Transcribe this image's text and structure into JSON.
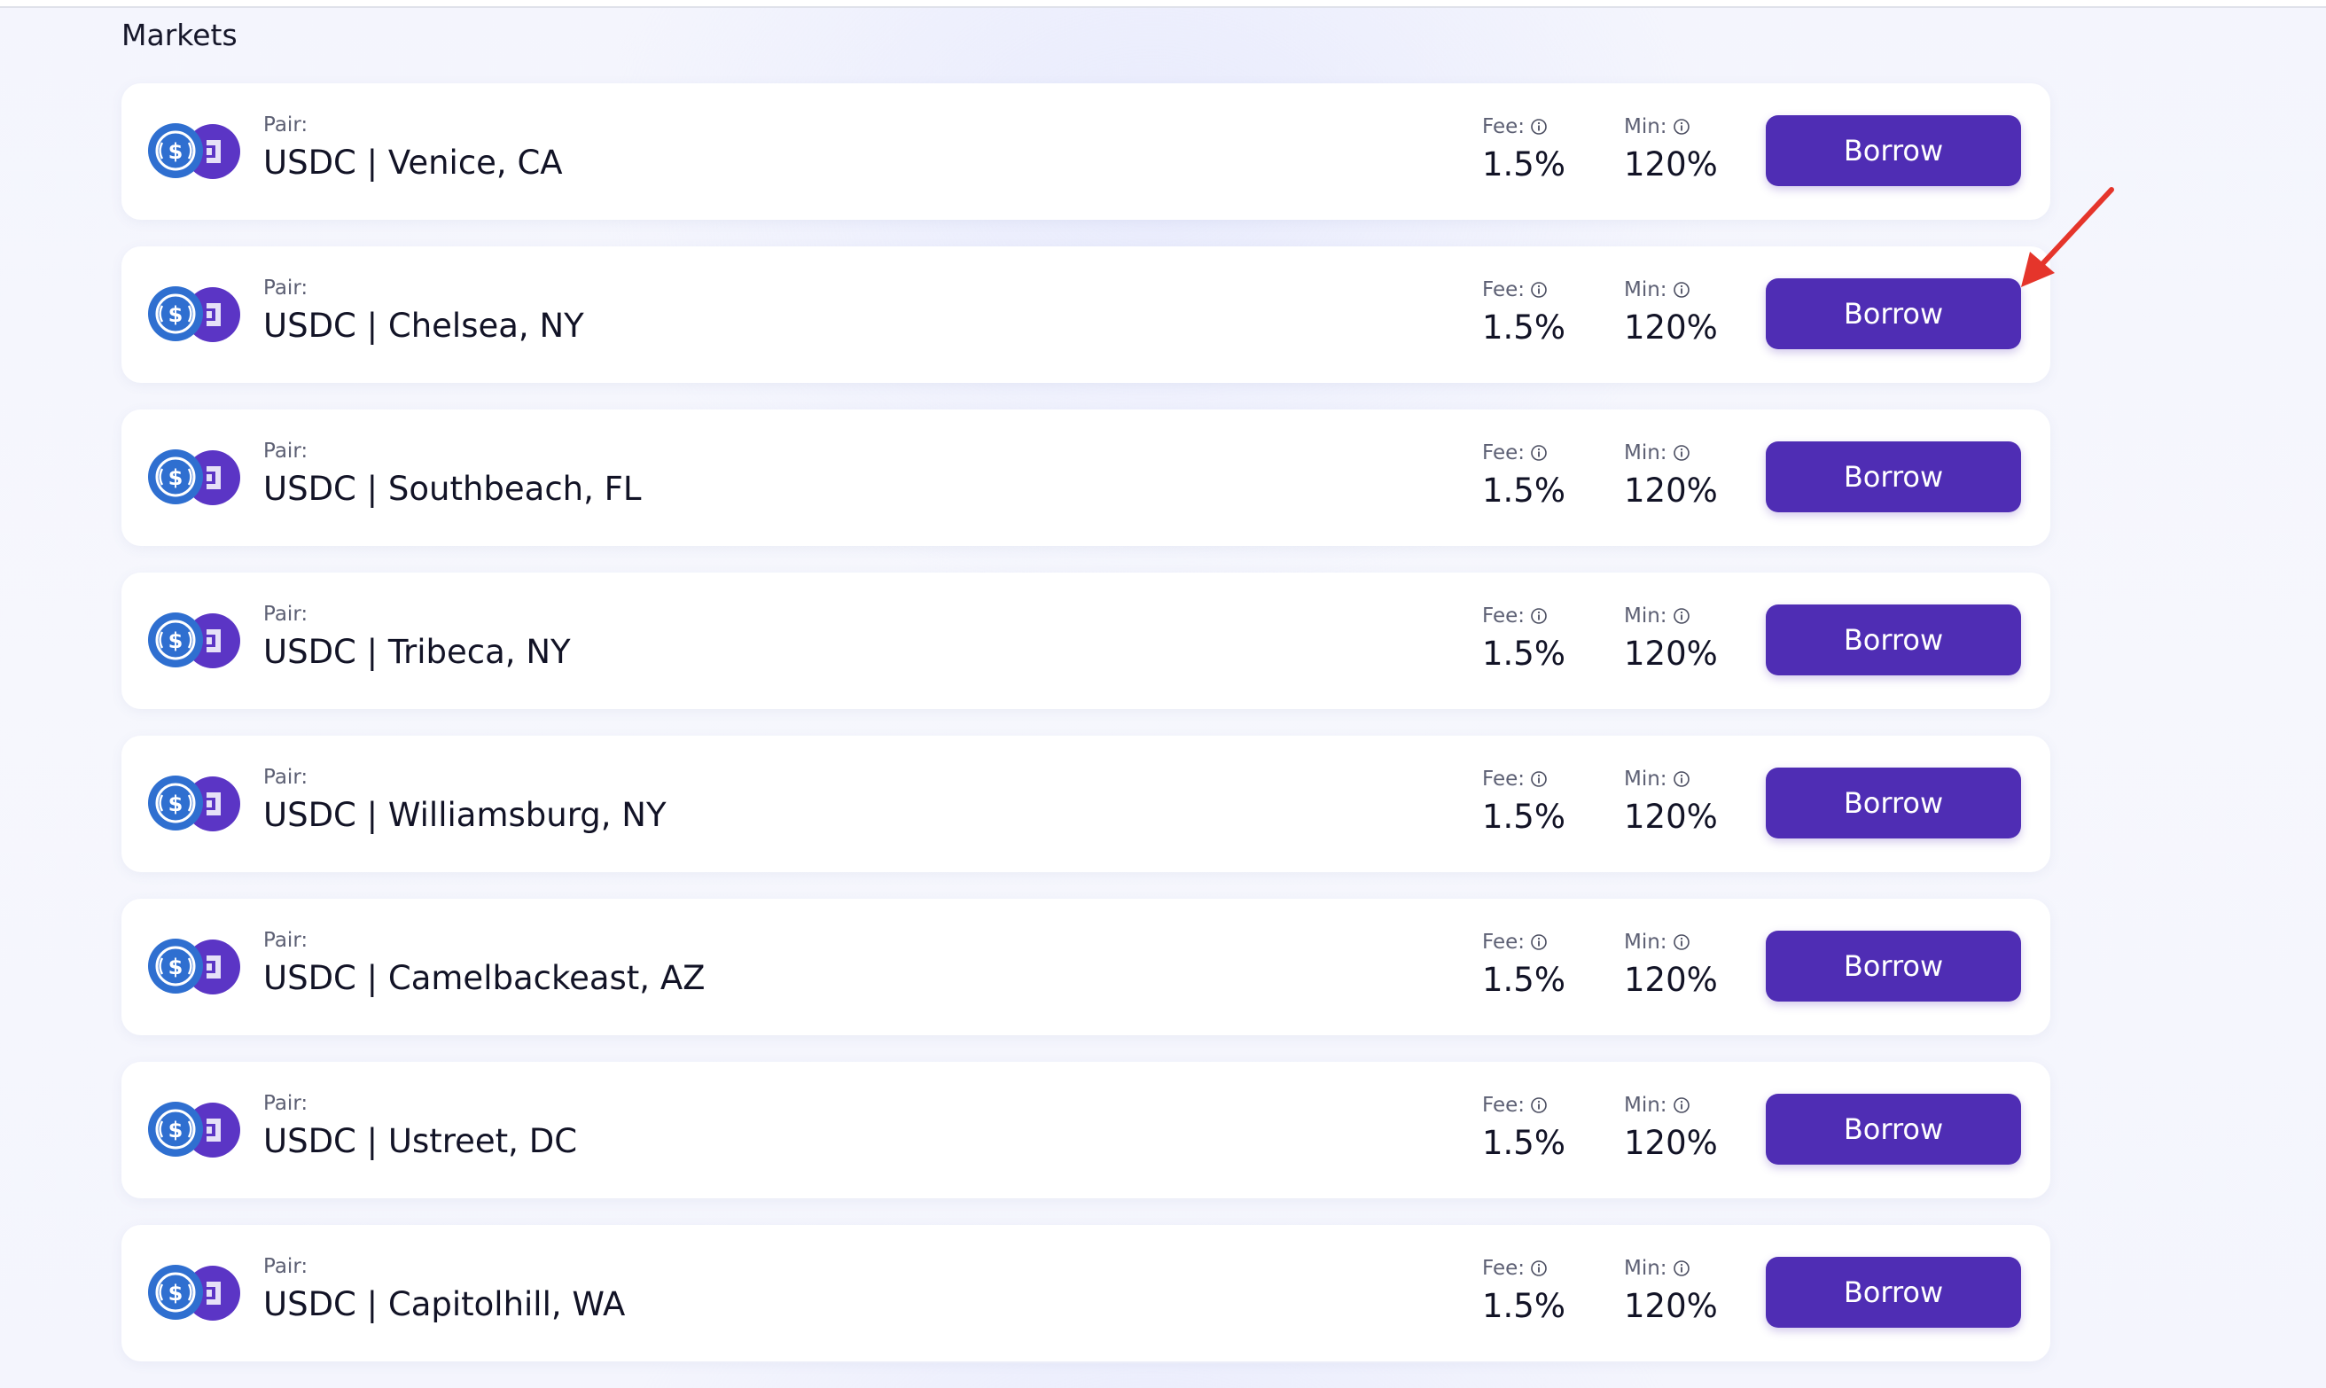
{
  "page": {
    "title": "Markets"
  },
  "markets": [
    {
      "pair_caption": "Pair:",
      "pair": "USDC | Venice, CA",
      "fee_label": "Fee:",
      "fee": "1.5%",
      "min_label": "Min:",
      "min": "120%",
      "action": "Borrow"
    },
    {
      "pair_caption": "Pair:",
      "pair": "USDC | Chelsea, NY",
      "fee_label": "Fee:",
      "fee": "1.5%",
      "min_label": "Min:",
      "min": "120%",
      "action": "Borrow"
    },
    {
      "pair_caption": "Pair:",
      "pair": "USDC | Southbeach, FL",
      "fee_label": "Fee:",
      "fee": "1.5%",
      "min_label": "Min:",
      "min": "120%",
      "action": "Borrow"
    },
    {
      "pair_caption": "Pair:",
      "pair": "USDC | Tribeca, NY",
      "fee_label": "Fee:",
      "fee": "1.5%",
      "min_label": "Min:",
      "min": "120%",
      "action": "Borrow"
    },
    {
      "pair_caption": "Pair:",
      "pair": "USDC | Williamsburg, NY",
      "fee_label": "Fee:",
      "fee": "1.5%",
      "min_label": "Min:",
      "min": "120%",
      "action": "Borrow"
    },
    {
      "pair_caption": "Pair:",
      "pair": "USDC | Camelbackeast, AZ",
      "fee_label": "Fee:",
      "fee": "1.5%",
      "min_label": "Min:",
      "min": "120%",
      "action": "Borrow"
    },
    {
      "pair_caption": "Pair:",
      "pair": "USDC | Ustreet, DC",
      "fee_label": "Fee:",
      "fee": "1.5%",
      "min_label": "Min:",
      "min": "120%",
      "action": "Borrow"
    },
    {
      "pair_caption": "Pair:",
      "pair": "USDC | Capitolhill, WA",
      "fee_label": "Fee:",
      "fee": "1.5%",
      "min_label": "Min:",
      "min": "120%",
      "action": "Borrow"
    }
  ],
  "icons": {
    "token_primary": "usdc-coin-icon",
    "token_secondary": "property-token-icon",
    "stat_help": "info-icon",
    "annotation": "red-arrow-annotation"
  },
  "colors": {
    "accent": "#4f2db4",
    "usdc_blue": "#2775ca",
    "token_purple": "#5b35c5",
    "annotation_red": "#e5352b"
  }
}
